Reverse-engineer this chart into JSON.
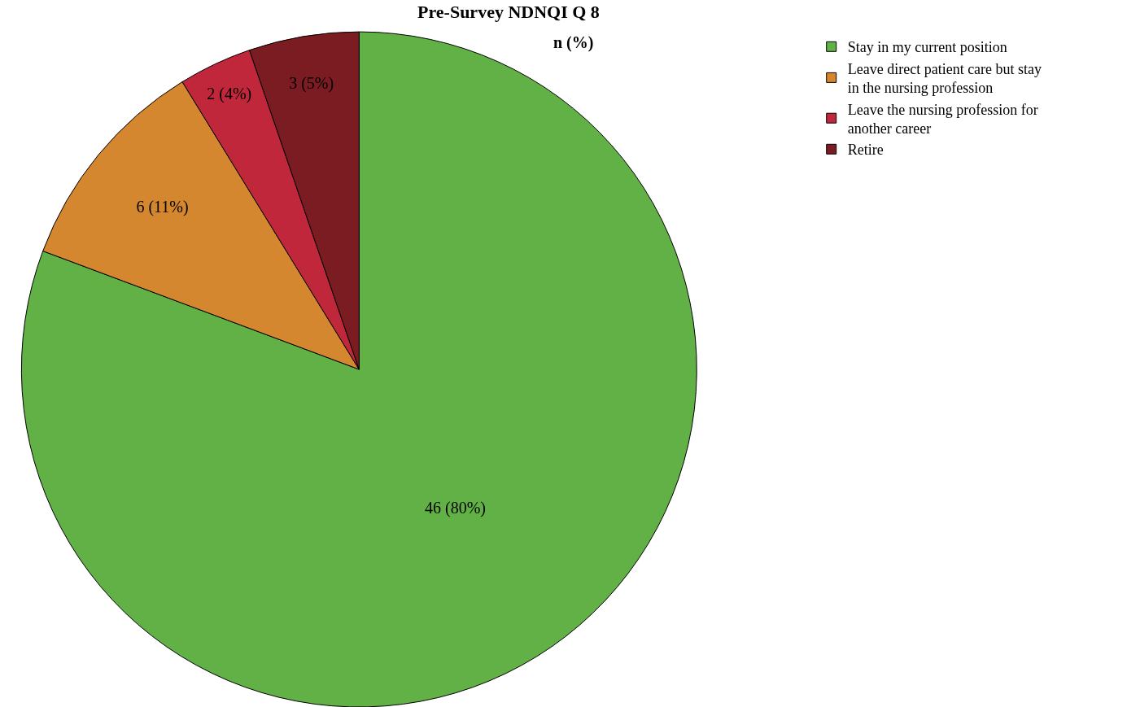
{
  "chart_data": {
    "type": "pie",
    "title": "Pre-Survey NDNQI Q 8",
    "subtitle": "n (%)",
    "categories": [
      "Stay in my current position",
      "Leave direct patient care but stay in the nursing profession",
      "Leave the nursing profession for another career",
      "Retire"
    ],
    "values": [
      46,
      6,
      2,
      3
    ],
    "value_labels": [
      "46 (80%)",
      "6 (11%)",
      "2 (4%)",
      "3 (5%)"
    ],
    "colors": [
      "#62b146",
      "#d4872e",
      "#c0273a",
      "#7b1c22"
    ],
    "legend": "top right"
  }
}
